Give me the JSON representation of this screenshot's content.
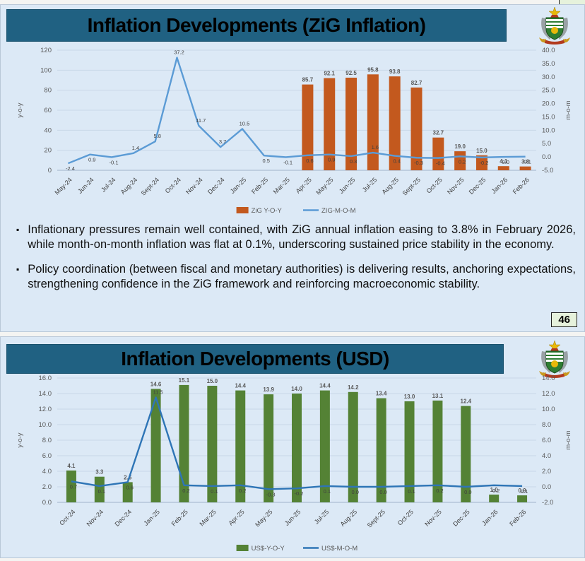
{
  "page_number": "46",
  "colors": {
    "slide_bg": "#dce9f6",
    "titlebar_bg": "#206182",
    "zig_bar": "#c3591e",
    "zig_line": "#5b9bd5",
    "usd_bar": "#548235",
    "usd_line": "#2e75b6",
    "gridline": "#c9d7e8",
    "axis_text": "#595959",
    "label_text": "#404040"
  },
  "slides": [
    {
      "title": "Inflation Developments (ZiG Inflation)",
      "logo": "zimbabwe-coat-of-arms",
      "bullets": [
        "Inflationary pressures remain well contained, with ZiG annual inflation easing to 3.8% in February 2026, while month-on-month inflation was flat at 0.1%, underscoring sustained price stability in the economy.",
        "Policy coordination (between fiscal and monetary authorities) is delivering results, anchoring expectations, strengthening confidence in the ZiG framework and reinforcing macroeconomic stability."
      ],
      "chart_data": {
        "type": "bar+line",
        "categories": [
          "May-24",
          "Jun-24",
          "Jul-24",
          "Aug-24",
          "Sept-24",
          "Oct-24",
          "Nov-24",
          "Dec-24",
          "Jan-25",
          "Feb-25",
          "Mar-25",
          "Apr-25",
          "May-25",
          "Jun-25",
          "Jul-25",
          "Aug-25",
          "Sept-25",
          "Oct-25",
          "Nov-25",
          "Dec-25",
          "Jan-26",
          "Feb-26"
        ],
        "series": [
          {
            "name": "ZiG Y-O-Y",
            "type": "bar",
            "axis": "left",
            "color": "#c3591e",
            "values": [
              null,
              null,
              null,
              null,
              null,
              null,
              null,
              null,
              null,
              null,
              null,
              85.7,
              92.1,
              92.5,
              95.8,
              93.8,
              82.7,
              32.7,
              19.0,
              15.0,
              4.1,
              3.8
            ]
          },
          {
            "name": "ZIG-M-O-M",
            "type": "line",
            "axis": "right",
            "color": "#5b9bd5",
            "values": [
              -2.4,
              0.9,
              -0.1,
              1.4,
              5.8,
              37.2,
              11.7,
              3.7,
              10.5,
              0.5,
              -0.1,
              0.6,
              0.9,
              0.3,
              1.6,
              0.4,
              -0.3,
              -0.4,
              0.2,
              -0.2,
              0.0,
              0.1
            ]
          }
        ],
        "left_axis": {
          "label": "y-o-y",
          "min": 0,
          "max": 120,
          "step": 20,
          "decimals": 0
        },
        "right_axis": {
          "label": "m-o-m",
          "min": -5,
          "max": 40,
          "step": 5,
          "decimals": 1
        },
        "grid": true,
        "legend_position": "bottom"
      }
    },
    {
      "title": "Inflation Developments (USD)",
      "logo": "zimbabwe-coat-of-arms",
      "bullets": [],
      "chart_data": {
        "type": "bar+line",
        "categories": [
          "Oct-24",
          "Nov-24",
          "Dec-24",
          "Jan-25",
          "Feb-25",
          "Mar-25",
          "Apr-25",
          "May-25",
          "Jun-25",
          "Jul-25",
          "Aug-25",
          "Sept-25",
          "Oct-25",
          "Nov-25",
          "Dec-25",
          "Jan-26",
          "Feb-26"
        ],
        "series": [
          {
            "name": "US$-Y-O-Y",
            "type": "bar",
            "axis": "left",
            "color": "#548235",
            "values": [
              4.1,
              3.3,
              2.6,
              14.6,
              15.1,
              15.0,
              14.4,
              13.9,
              14.0,
              14.4,
              14.2,
              13.4,
              13.0,
              13.1,
              12.4,
              1.0,
              0.9
            ]
          },
          {
            "name": "US$-M-O-M",
            "type": "line",
            "axis": "right",
            "color": "#2e75b6",
            "values": [
              0.7,
              0.1,
              0.6,
              11.5,
              0.2,
              0.1,
              0.2,
              -0.3,
              -0.2,
              0.1,
              0.0,
              0.0,
              0.1,
              0.2,
              0.0,
              0.2,
              0.1
            ]
          }
        ],
        "left_axis": {
          "label": "y-o-y",
          "min": 0,
          "max": 16,
          "step": 2,
          "decimals": 1
        },
        "right_axis": {
          "label": "m-o-m",
          "min": -2,
          "max": 14,
          "step": 2,
          "decimals": 1
        },
        "grid": true,
        "legend_position": "bottom"
      }
    }
  ]
}
